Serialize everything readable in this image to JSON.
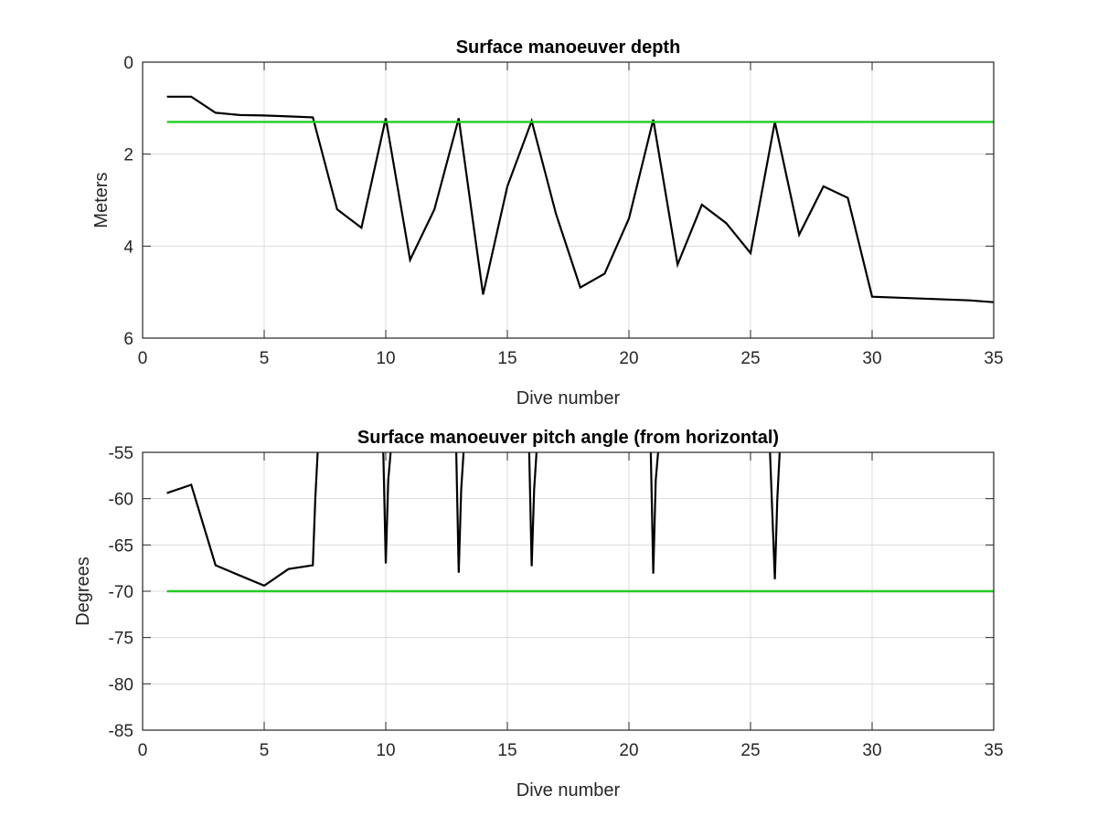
{
  "colors": {
    "data_line": "#000000",
    "reference_line": "#22cc22",
    "grid": "#dcdcdc"
  },
  "chart_data": [
    {
      "type": "line",
      "title": "Surface manoeuver depth",
      "xlabel": "Dive number",
      "ylabel": "Meters",
      "xlim": [
        0,
        35
      ],
      "ylim": [
        0,
        6
      ],
      "y_reversed": true,
      "grid": true,
      "x_ticks": [
        "0",
        "5",
        "10",
        "15",
        "20",
        "25",
        "30",
        "35"
      ],
      "y_ticks": [
        "0",
        "2",
        "4",
        "6"
      ],
      "series": [
        {
          "x": [
            1,
            2,
            3,
            4,
            5,
            6,
            7,
            8,
            9,
            10,
            11,
            12,
            13,
            14,
            15,
            16,
            17,
            18,
            19,
            20,
            21,
            22,
            23,
            24,
            25,
            26,
            27,
            28,
            29,
            30,
            31,
            32,
            33,
            34,
            35
          ],
          "y": [
            0.75,
            0.75,
            1.1,
            1.15,
            1.16,
            1.18,
            1.2,
            3.2,
            3.6,
            1.22,
            4.3,
            3.2,
            1.22,
            5.05,
            2.7,
            1.28,
            3.3,
            4.9,
            4.6,
            3.4,
            1.25,
            4.4,
            3.1,
            3.5,
            4.15,
            1.3,
            3.75,
            2.7,
            2.95,
            5.1,
            5.12,
            5.14,
            5.16,
            5.18,
            5.22
          ],
          "color": "#000000"
        },
        {
          "x": [
            1,
            35
          ],
          "y": [
            1.3,
            1.3
          ],
          "color": "#22cc22"
        }
      ]
    },
    {
      "type": "line",
      "title": "Surface manoeuver pitch angle (from horizontal)",
      "xlabel": "Dive number",
      "ylabel": "Degrees",
      "xlim": [
        0,
        35
      ],
      "ylim": [
        -85,
        -55
      ],
      "grid": true,
      "x_ticks": [
        "0",
        "5",
        "10",
        "15",
        "20",
        "25",
        "30",
        "35"
      ],
      "y_ticks": [
        "-55",
        "-60",
        "-65",
        "-70",
        "-75",
        "-80",
        "-85"
      ],
      "series": [
        {
          "x": [
            1,
            2,
            3,
            4,
            5,
            6,
            7,
            7.1,
            7.2,
            null,
            9.9,
            10,
            10.1,
            10.2,
            null,
            12.9,
            13,
            13.1,
            13.2,
            null,
            15.9,
            16,
            16.1,
            16.2,
            null,
            20.9,
            21,
            21.1,
            21.2,
            null,
            25.8,
            26,
            26.1,
            26.2
          ],
          "y": [
            -59.4,
            -58.5,
            -67.2,
            -68.3,
            -69.4,
            -67.6,
            -67.2,
            -60,
            -55,
            null,
            -55,
            -67,
            -58,
            -55,
            null,
            -55,
            -68,
            -59,
            -55,
            null,
            -55,
            -67.3,
            -59,
            -55,
            null,
            -55,
            -68.1,
            -58,
            -55,
            null,
            -55,
            -68.7,
            -60,
            -55
          ],
          "color": "#000000"
        },
        {
          "x": [
            1,
            35
          ],
          "y": [
            -70,
            -70
          ],
          "color": "#22cc22"
        }
      ]
    }
  ]
}
